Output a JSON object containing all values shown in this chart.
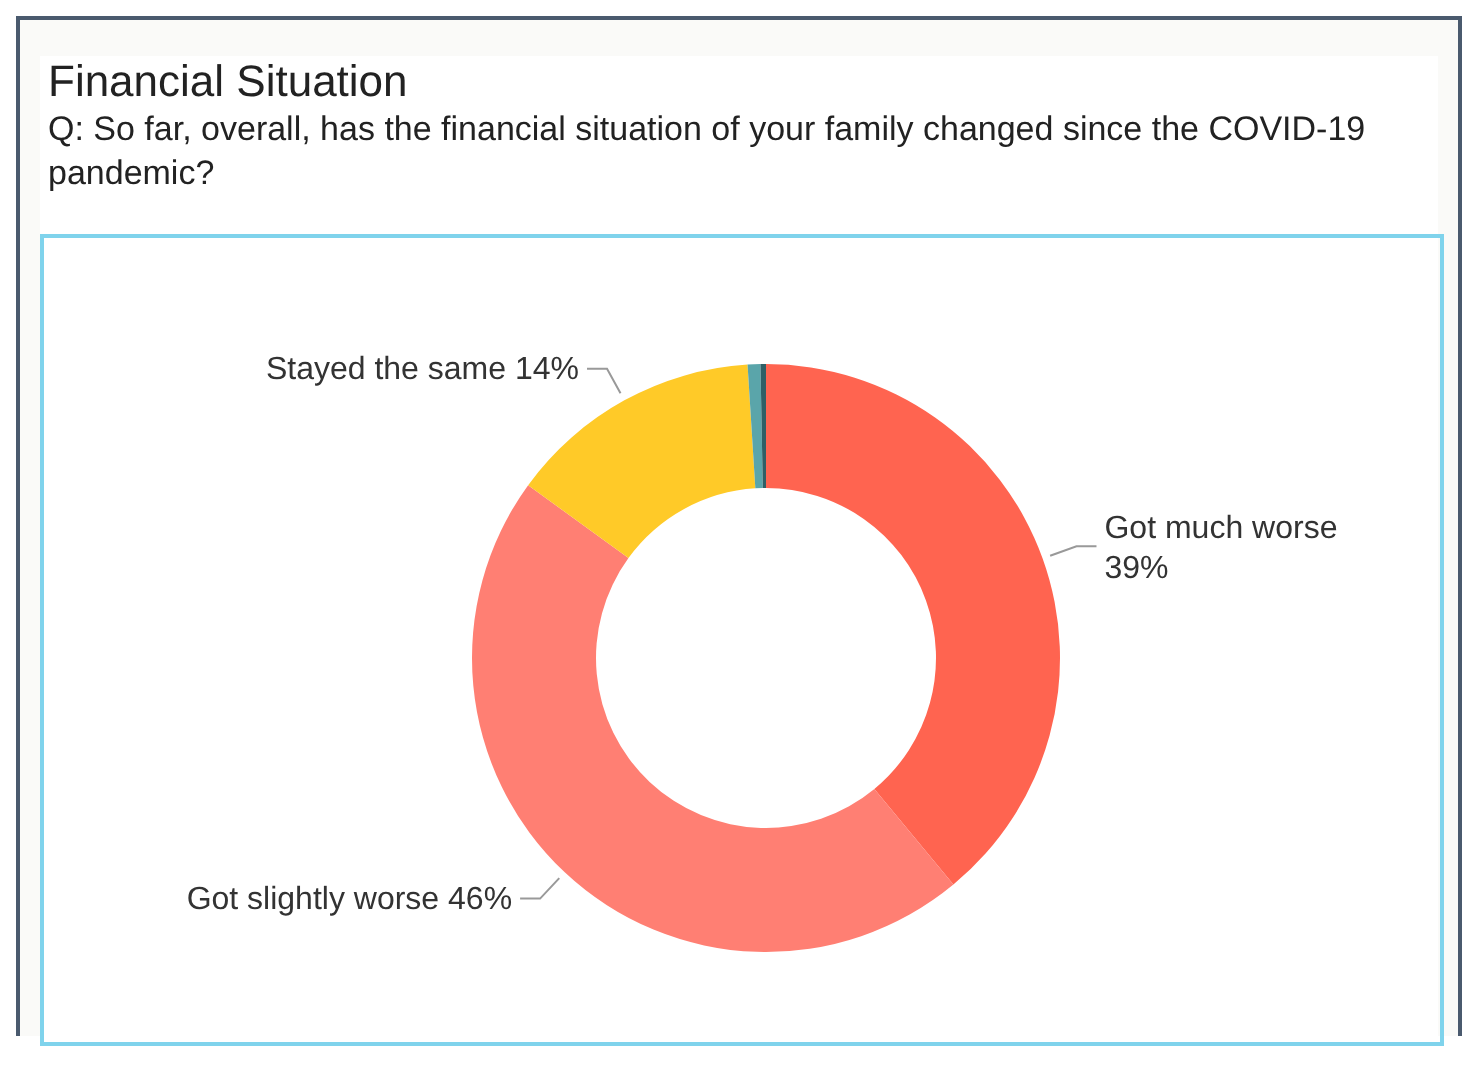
{
  "chart_data": {
    "type": "donut",
    "title": "Financial Situation",
    "subtitle": "Q: So far, overall, has the financial situation of your family changed since the COVID-19 pandemic?",
    "categories": [
      "Got much worse",
      "Got slightly worse",
      "Stayed the same",
      null,
      null
    ],
    "values": [
      39,
      46,
      14,
      0.7,
      0.3
    ],
    "colors": [
      "#ff6450",
      "#ff7f73",
      "#ffca28",
      "#5aa5aa",
      "#2f5f66"
    ],
    "value_labels": [
      "39%",
      "46%",
      "14%",
      null,
      null
    ],
    "legend": false
  }
}
